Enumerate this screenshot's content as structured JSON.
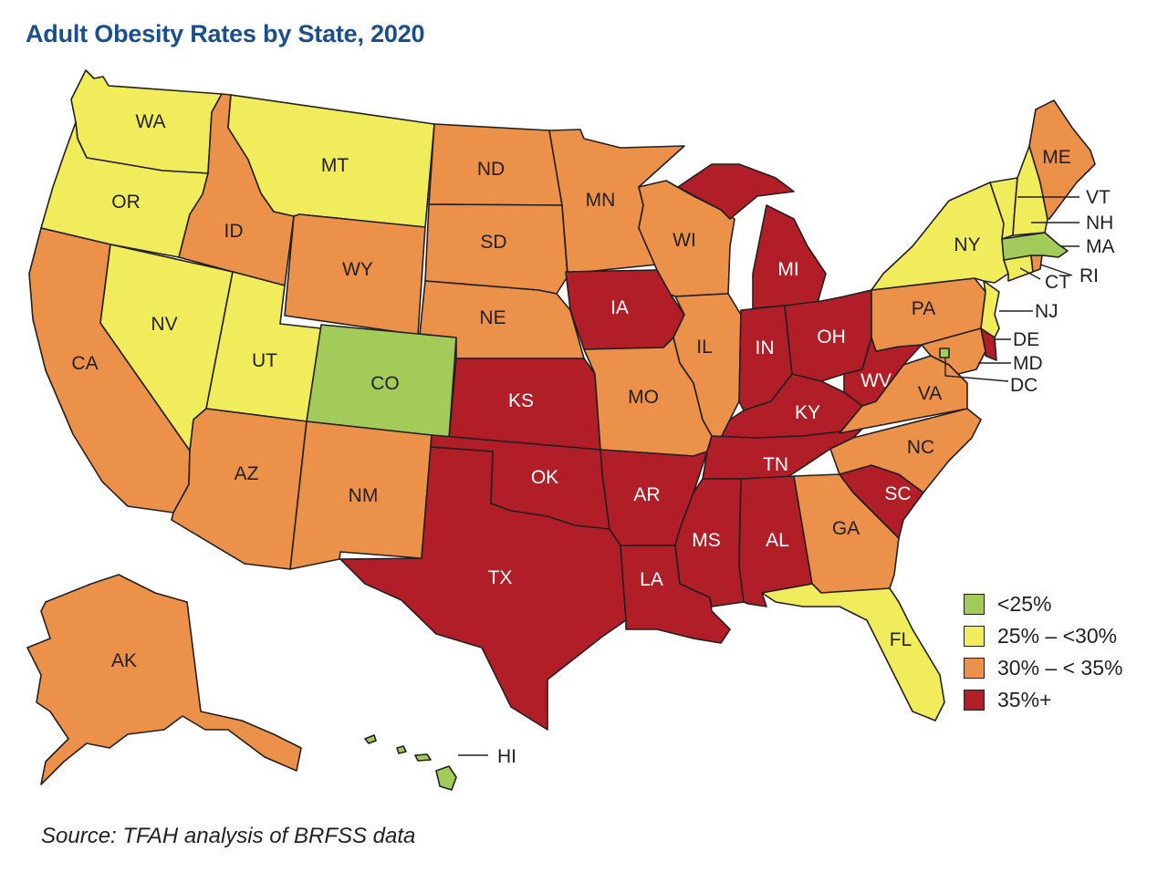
{
  "title": "Adult Obesity Rates by State, 2020",
  "source": "Source: TFAH analysis of BRFSS data",
  "colors": {
    "lt25": "#a3cb5a",
    "25to30": "#f1ec5b",
    "30to35": "#ec914a",
    "35plus": "#b11e27"
  },
  "legend": [
    {
      "key": "lt25",
      "label": "<25%"
    },
    {
      "key": "25to30",
      "label": "25% – <30%"
    },
    {
      "key": "30to35",
      "label": "30% – < 35%"
    },
    {
      "key": "35plus",
      "label": "35%+"
    }
  ],
  "states": {
    "WA": "25to30",
    "OR": "25to30",
    "CA": "30to35",
    "NV": "25to30",
    "ID": "30to35",
    "MT": "25to30",
    "WY": "30to35",
    "UT": "25to30",
    "AZ": "30to35",
    "CO": "lt25",
    "NM": "30to35",
    "ND": "30to35",
    "SD": "30to35",
    "NE": "30to35",
    "KS": "35plus",
    "OK": "35plus",
    "TX": "35plus",
    "MN": "30to35",
    "IA": "35plus",
    "MO": "30to35",
    "AR": "35plus",
    "LA": "35plus",
    "WI": "30to35",
    "IL": "30to35",
    "MI": "35plus",
    "IN": "35plus",
    "OH": "35plus",
    "KY": "35plus",
    "TN": "35plus",
    "MS": "35plus",
    "AL": "35plus",
    "GA": "30to35",
    "FL": "25to30",
    "SC": "35plus",
    "NC": "30to35",
    "VA": "30to35",
    "WV": "35plus",
    "PA": "30to35",
    "NY": "25to30",
    "VT": "25to30",
    "NH": "25to30",
    "ME": "30to35",
    "MA": "lt25",
    "RI": "30to35",
    "CT": "25to30",
    "NJ": "25to30",
    "DE": "35plus",
    "MD": "30to35",
    "DC": "lt25",
    "AK": "30to35",
    "HI": "lt25"
  },
  "labels": {
    "WA": "WA",
    "OR": "OR",
    "CA": "CA",
    "NV": "NV",
    "ID": "ID",
    "MT": "MT",
    "WY": "WY",
    "UT": "UT",
    "AZ": "AZ",
    "CO": "CO",
    "NM": "NM",
    "ND": "ND",
    "SD": "SD",
    "NE": "NE",
    "KS": "KS",
    "OK": "OK",
    "TX": "TX",
    "MN": "MN",
    "IA": "IA",
    "MO": "MO",
    "AR": "AR",
    "LA": "LA",
    "WI": "WI",
    "IL": "IL",
    "MI": "MI",
    "IN": "IN",
    "OH": "OH",
    "KY": "KY",
    "TN": "TN",
    "MS": "MS",
    "AL": "AL",
    "GA": "GA",
    "FL": "FL",
    "SC": "SC",
    "NC": "NC",
    "VA": "VA",
    "WV": "WV",
    "PA": "PA",
    "NY": "NY",
    "ME": "ME",
    "AK": "AK",
    "VT": "VT",
    "NH": "NH",
    "MA": "MA",
    "RI": "RI",
    "CT": "CT",
    "NJ": "NJ",
    "DE": "DE",
    "MD": "MD",
    "DC": "DC",
    "HI": "HI"
  }
}
